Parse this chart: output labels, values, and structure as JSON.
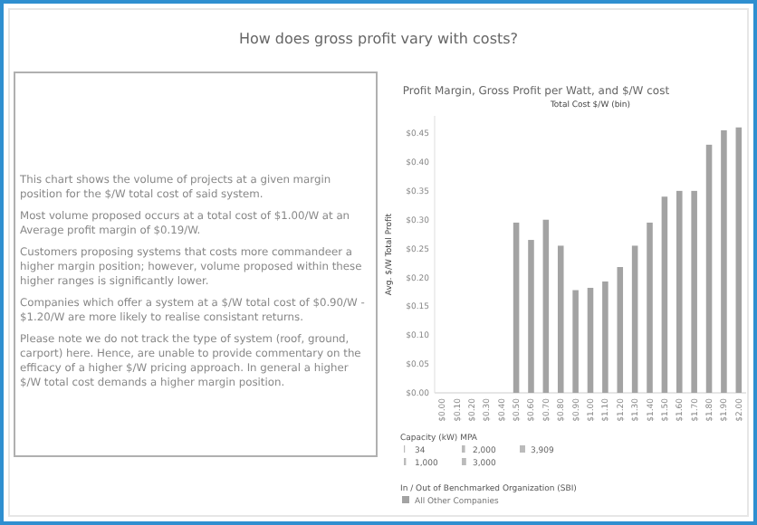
{
  "chart_data": {
    "type": "bar",
    "title": "How does gross profit vary with costs?",
    "subtitle": "Profit Margin, Gross Profit per Watt, and $/W cost",
    "xlabel": "Total Cost $/W (bin)",
    "ylabel": "Avg. $/W Total Profit",
    "categories": [
      "$0.00",
      "$0.10",
      "$0.20",
      "$0.30",
      "$0.40",
      "$0.50",
      "$0.60",
      "$0.70",
      "$0.80",
      "$0.90",
      "$1.00",
      "$1.10",
      "$1.20",
      "$1.30",
      "$1.40",
      "$1.50",
      "$1.60",
      "$1.70",
      "$1.80",
      "$1.90",
      "$2.00"
    ],
    "series": [
      {
        "name": "All Other Companies",
        "color": "#a3a3a3",
        "values": [
          null,
          null,
          null,
          null,
          null,
          0.295,
          0.265,
          0.3,
          0.255,
          0.178,
          0.182,
          0.193,
          0.218,
          0.255,
          0.295,
          0.34,
          0.35,
          0.35,
          0.43,
          0.455,
          0.46
        ]
      }
    ],
    "ylim": [
      0,
      0.48
    ],
    "yticks": [
      {
        "value": 0,
        "label": "$0.00"
      },
      {
        "value": 0.05,
        "label": "$0.05"
      },
      {
        "value": 0.1,
        "label": "$0.10"
      },
      {
        "value": 0.15,
        "label": "$0.15"
      },
      {
        "value": 0.2,
        "label": "$0.20"
      },
      {
        "value": 0.25,
        "label": "$0.25"
      },
      {
        "value": 0.3,
        "label": "$0.30"
      },
      {
        "value": 0.35,
        "label": "$0.35"
      },
      {
        "value": 0.4,
        "label": "$0.40"
      },
      {
        "value": 0.45,
        "label": "$0.45"
      }
    ],
    "grid": false,
    "legend": "bottom",
    "legend_title": "In / Out of Benchmarked Organization (SBI)",
    "annotations": [
      "This chart shows the volume of projects at a given margin position for the $/W total cost of said system.",
      "Most volume proposed occurs at a total cost of $1.00/W at an Average profit margin of $0.19/W.",
      "Customers proposing systems that costs more commandeer a higher margin position; however, volume proposed within these higher ranges is significantly lower.",
      "Companies which offer a system at a $/W total cost of $0.90/W - $1.20/W are more likely to realise consistant returns.",
      "Please note we do not track the type of system (roof, ground, carport) here. Hence, are unable to provide commentary on the efficacy of a higher $/W pricing approach. In general a higher $/W total cost demands a higher margin position.",
      "Capacity (kW) MPA",
      "34",
      "1,000",
      "2,000",
      "3,000",
      "3,909"
    ]
  }
}
